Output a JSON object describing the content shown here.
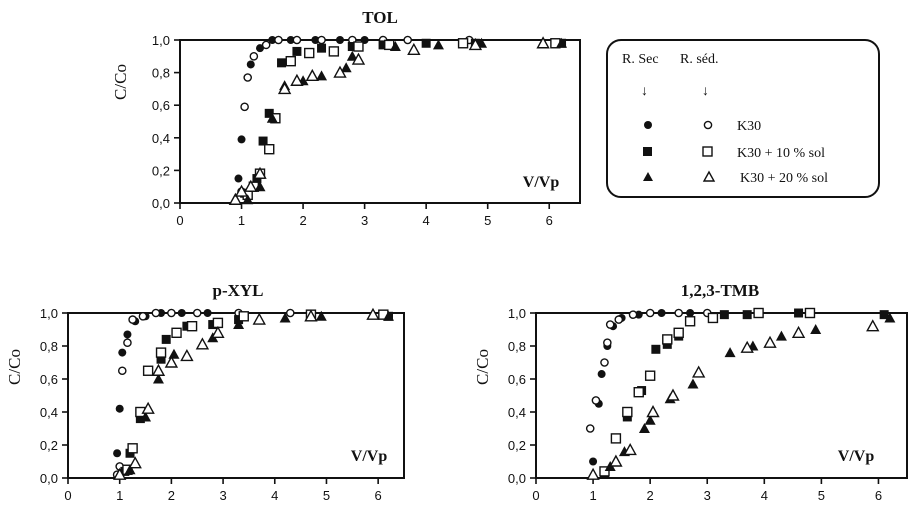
{
  "chart_data": [
    {
      "type": "scatter",
      "title": "TOL",
      "xlabel": "V/Vp",
      "ylabel": "C/Co",
      "xlim": [
        0,
        6.5
      ],
      "ylim": [
        0,
        1.0
      ],
      "xticks": [
        "0",
        "1",
        "2",
        "3",
        "4",
        "5",
        "6"
      ],
      "yticks": [
        "0,0",
        "0,2",
        "0,4",
        "0,6",
        "0,8",
        "1,0"
      ],
      "series": [
        {
          "name": "K30 R. Sec",
          "marker": "filled-circle",
          "points": [
            [
              0.95,
              0.15
            ],
            [
              1.0,
              0.39
            ],
            [
              1.05,
              0.59
            ],
            [
              1.15,
              0.85
            ],
            [
              1.3,
              0.95
            ],
            [
              1.5,
              1.0
            ],
            [
              1.8,
              1.0
            ],
            [
              2.2,
              1.0
            ],
            [
              2.6,
              1.0
            ],
            [
              3.0,
              1.0
            ]
          ]
        },
        {
          "name": "K30 R. séd.",
          "marker": "open-circle",
          "points": [
            [
              1.0,
              0.07
            ],
            [
              1.05,
              0.59
            ],
            [
              1.1,
              0.77
            ],
            [
              1.2,
              0.9
            ],
            [
              1.4,
              0.97
            ],
            [
              1.6,
              1.0
            ],
            [
              1.9,
              1.0
            ],
            [
              2.3,
              1.0
            ],
            [
              2.8,
              1.0
            ],
            [
              3.3,
              1.0
            ],
            [
              3.7,
              1.0
            ],
            [
              4.7,
              1.0
            ]
          ]
        },
        {
          "name": "K30 + 10 % sol R. Sec",
          "marker": "filled-square",
          "points": [
            [
              1.05,
              0.06
            ],
            [
              1.25,
              0.15
            ],
            [
              1.35,
              0.38
            ],
            [
              1.45,
              0.55
            ],
            [
              1.65,
              0.86
            ],
            [
              1.9,
              0.93
            ],
            [
              2.3,
              0.95
            ],
            [
              2.8,
              0.96
            ],
            [
              3.3,
              0.97
            ],
            [
              4.0,
              0.98
            ],
            [
              4.8,
              0.98
            ],
            [
              6.2,
              0.98
            ]
          ]
        },
        {
          "name": "K30 + 10 % sol R. séd.",
          "marker": "open-square",
          "points": [
            [
              1.1,
              0.05
            ],
            [
              1.2,
              0.1
            ],
            [
              1.3,
              0.18
            ],
            [
              1.45,
              0.33
            ],
            [
              1.55,
              0.52
            ],
            [
              1.8,
              0.87
            ],
            [
              2.1,
              0.92
            ],
            [
              2.5,
              0.93
            ],
            [
              2.9,
              0.96
            ],
            [
              3.4,
              0.97
            ],
            [
              4.6,
              0.98
            ],
            [
              6.1,
              0.98
            ]
          ]
        },
        {
          "name": "K30 + 20 % sol R. Sec",
          "marker": "filled-triangle",
          "points": [
            [
              1.1,
              0.02
            ],
            [
              1.3,
              0.1
            ],
            [
              1.5,
              0.52
            ],
            [
              1.7,
              0.72
            ],
            [
              2.0,
              0.75
            ],
            [
              2.3,
              0.78
            ],
            [
              2.7,
              0.83
            ],
            [
              2.8,
              0.9
            ],
            [
              3.5,
              0.96
            ],
            [
              4.2,
              0.97
            ],
            [
              4.9,
              0.98
            ],
            [
              6.2,
              0.98
            ]
          ]
        },
        {
          "name": "K30 + 20 % sol R. séd.",
          "marker": "open-triangle",
          "points": [
            [
              0.9,
              0.02
            ],
            [
              1.0,
              0.07
            ],
            [
              1.15,
              0.1
            ],
            [
              1.3,
              0.18
            ],
            [
              1.7,
              0.7
            ],
            [
              1.9,
              0.75
            ],
            [
              2.15,
              0.78
            ],
            [
              2.6,
              0.8
            ],
            [
              2.9,
              0.88
            ],
            [
              3.8,
              0.94
            ],
            [
              4.8,
              0.97
            ],
            [
              5.9,
              0.98
            ]
          ]
        }
      ]
    },
    {
      "type": "scatter",
      "title": "p-XYL",
      "xlabel": "V/Vp",
      "ylabel": "C/Co",
      "xlim": [
        0,
        6.5
      ],
      "ylim": [
        0,
        1.0
      ],
      "xticks": [
        "0",
        "1",
        "2",
        "3",
        "4",
        "5",
        "6"
      ],
      "yticks": [
        "0,0",
        "0,2",
        "0,4",
        "0,6",
        "0,8",
        "1,0"
      ],
      "series": [
        {
          "name": "K30 R. Sec",
          "marker": "filled-circle",
          "points": [
            [
              0.95,
              0.15
            ],
            [
              1.0,
              0.42
            ],
            [
              1.05,
              0.76
            ],
            [
              1.15,
              0.87
            ],
            [
              1.3,
              0.95
            ],
            [
              1.5,
              0.98
            ],
            [
              1.8,
              1.0
            ],
            [
              2.2,
              1.0
            ],
            [
              2.7,
              1.0
            ]
          ]
        },
        {
          "name": "K30 R. séd.",
          "marker": "open-circle",
          "points": [
            [
              0.95,
              0.02
            ],
            [
              1.0,
              0.07
            ],
            [
              1.05,
              0.65
            ],
            [
              1.15,
              0.82
            ],
            [
              1.25,
              0.96
            ],
            [
              1.45,
              0.98
            ],
            [
              1.7,
              1.0
            ],
            [
              2.0,
              1.0
            ],
            [
              2.5,
              1.0
            ],
            [
              3.3,
              1.0
            ],
            [
              4.3,
              1.0
            ]
          ]
        },
        {
          "name": "K30 + 10 % sol R. Sec",
          "marker": "filled-square",
          "points": [
            [
              1.1,
              0.04
            ],
            [
              1.2,
              0.15
            ],
            [
              1.4,
              0.36
            ],
            [
              1.8,
              0.72
            ],
            [
              1.9,
              0.84
            ],
            [
              2.3,
              0.92
            ],
            [
              2.8,
              0.93
            ],
            [
              3.3,
              0.96
            ],
            [
              4.7,
              0.98
            ],
            [
              6.2,
              0.98
            ]
          ]
        },
        {
          "name": "K30 + 10 % sol R. séd.",
          "marker": "open-square",
          "points": [
            [
              1.15,
              0.05
            ],
            [
              1.25,
              0.18
            ],
            [
              1.4,
              0.4
            ],
            [
              1.55,
              0.65
            ],
            [
              1.8,
              0.76
            ],
            [
              2.1,
              0.88
            ],
            [
              2.4,
              0.92
            ],
            [
              2.9,
              0.94
            ],
            [
              3.4,
              0.98
            ],
            [
              4.7,
              0.99
            ],
            [
              6.1,
              0.99
            ]
          ]
        },
        {
          "name": "K30 + 20 % sol R. Sec",
          "marker": "filled-triangle",
          "points": [
            [
              1.2,
              0.05
            ],
            [
              1.5,
              0.37
            ],
            [
              1.75,
              0.6
            ],
            [
              2.05,
              0.75
            ],
            [
              2.8,
              0.85
            ],
            [
              3.3,
              0.93
            ],
            [
              4.2,
              0.97
            ],
            [
              4.9,
              0.98
            ],
            [
              6.2,
              0.98
            ]
          ]
        },
        {
          "name": "K30 + 20 % sol R. séd.",
          "marker": "open-triangle",
          "points": [
            [
              1.0,
              0.02
            ],
            [
              1.3,
              0.09
            ],
            [
              1.55,
              0.42
            ],
            [
              1.75,
              0.65
            ],
            [
              2.0,
              0.7
            ],
            [
              2.3,
              0.74
            ],
            [
              2.6,
              0.81
            ],
            [
              2.9,
              0.88
            ],
            [
              3.7,
              0.96
            ],
            [
              4.7,
              0.98
            ],
            [
              5.9,
              0.99
            ]
          ]
        }
      ]
    },
    {
      "type": "scatter",
      "title": "1,2,3-TMB",
      "xlabel": "V/Vp",
      "ylabel": "C/Co",
      "xlim": [
        0,
        6.5
      ],
      "ylim": [
        0,
        1.0
      ],
      "xticks": [
        "0",
        "1",
        "2",
        "3",
        "4",
        "5",
        "6"
      ],
      "yticks": [
        "0,0",
        "0,2",
        "0,4",
        "0,6",
        "0,8",
        "1,0"
      ],
      "series": [
        {
          "name": "K30 R. Sec",
          "marker": "filled-circle",
          "points": [
            [
              1.0,
              0.1
            ],
            [
              1.1,
              0.45
            ],
            [
              1.15,
              0.63
            ],
            [
              1.25,
              0.8
            ],
            [
              1.35,
              0.92
            ],
            [
              1.5,
              0.97
            ],
            [
              1.8,
              0.99
            ],
            [
              2.2,
              1.0
            ],
            [
              2.7,
              1.0
            ]
          ]
        },
        {
          "name": "K30 R. séd.",
          "marker": "open-circle",
          "points": [
            [
              0.95,
              0.3
            ],
            [
              1.05,
              0.47
            ],
            [
              1.2,
              0.7
            ],
            [
              1.25,
              0.82
            ],
            [
              1.3,
              0.93
            ],
            [
              1.45,
              0.96
            ],
            [
              1.7,
              0.99
            ],
            [
              2.0,
              1.0
            ],
            [
              2.5,
              1.0
            ],
            [
              3.0,
              1.0
            ]
          ]
        },
        {
          "name": "K30 + 10 % sol R. Sec",
          "marker": "filled-square",
          "points": [
            [
              1.2,
              0.03
            ],
            [
              1.6,
              0.37
            ],
            [
              1.85,
              0.53
            ],
            [
              2.1,
              0.78
            ],
            [
              2.3,
              0.81
            ],
            [
              2.5,
              0.86
            ],
            [
              3.3,
              0.99
            ],
            [
              3.7,
              0.99
            ],
            [
              4.6,
              1.0
            ],
            [
              6.1,
              0.99
            ]
          ]
        },
        {
          "name": "K30 + 10 % sol R. séd.",
          "marker": "open-square",
          "points": [
            [
              1.2,
              0.04
            ],
            [
              1.4,
              0.24
            ],
            [
              1.6,
              0.4
            ],
            [
              1.8,
              0.52
            ],
            [
              2.0,
              0.62
            ],
            [
              2.3,
              0.84
            ],
            [
              2.5,
              0.88
            ],
            [
              2.7,
              0.95
            ],
            [
              3.1,
              0.97
            ],
            [
              3.9,
              1.0
            ],
            [
              4.8,
              1.0
            ]
          ]
        },
        {
          "name": "K30 + 20 % sol R. Sec",
          "marker": "filled-triangle",
          "points": [
            [
              1.3,
              0.07
            ],
            [
              1.55,
              0.16
            ],
            [
              1.9,
              0.3
            ],
            [
              2.0,
              0.35
            ],
            [
              2.35,
              0.48
            ],
            [
              2.75,
              0.57
            ],
            [
              3.4,
              0.76
            ],
            [
              3.8,
              0.8
            ],
            [
              4.3,
              0.86
            ],
            [
              4.9,
              0.9
            ],
            [
              6.2,
              0.97
            ]
          ]
        },
        {
          "name": "K30 + 20 % sol R. séd.",
          "marker": "open-triangle",
          "points": [
            [
              1.0,
              0.02
            ],
            [
              1.4,
              0.1
            ],
            [
              1.65,
              0.17
            ],
            [
              2.05,
              0.4
            ],
            [
              2.4,
              0.5
            ],
            [
              2.85,
              0.64
            ],
            [
              3.7,
              0.79
            ],
            [
              4.1,
              0.82
            ],
            [
              4.6,
              0.88
            ],
            [
              5.9,
              0.92
            ]
          ]
        }
      ]
    }
  ],
  "legend": {
    "col_headers": [
      "R. Sec",
      "R. séd."
    ],
    "arrows": [
      "↓",
      "↓"
    ],
    "labels": [
      "K30",
      "K30 + 10 % sol",
      "K30 + 20 % sol"
    ]
  }
}
